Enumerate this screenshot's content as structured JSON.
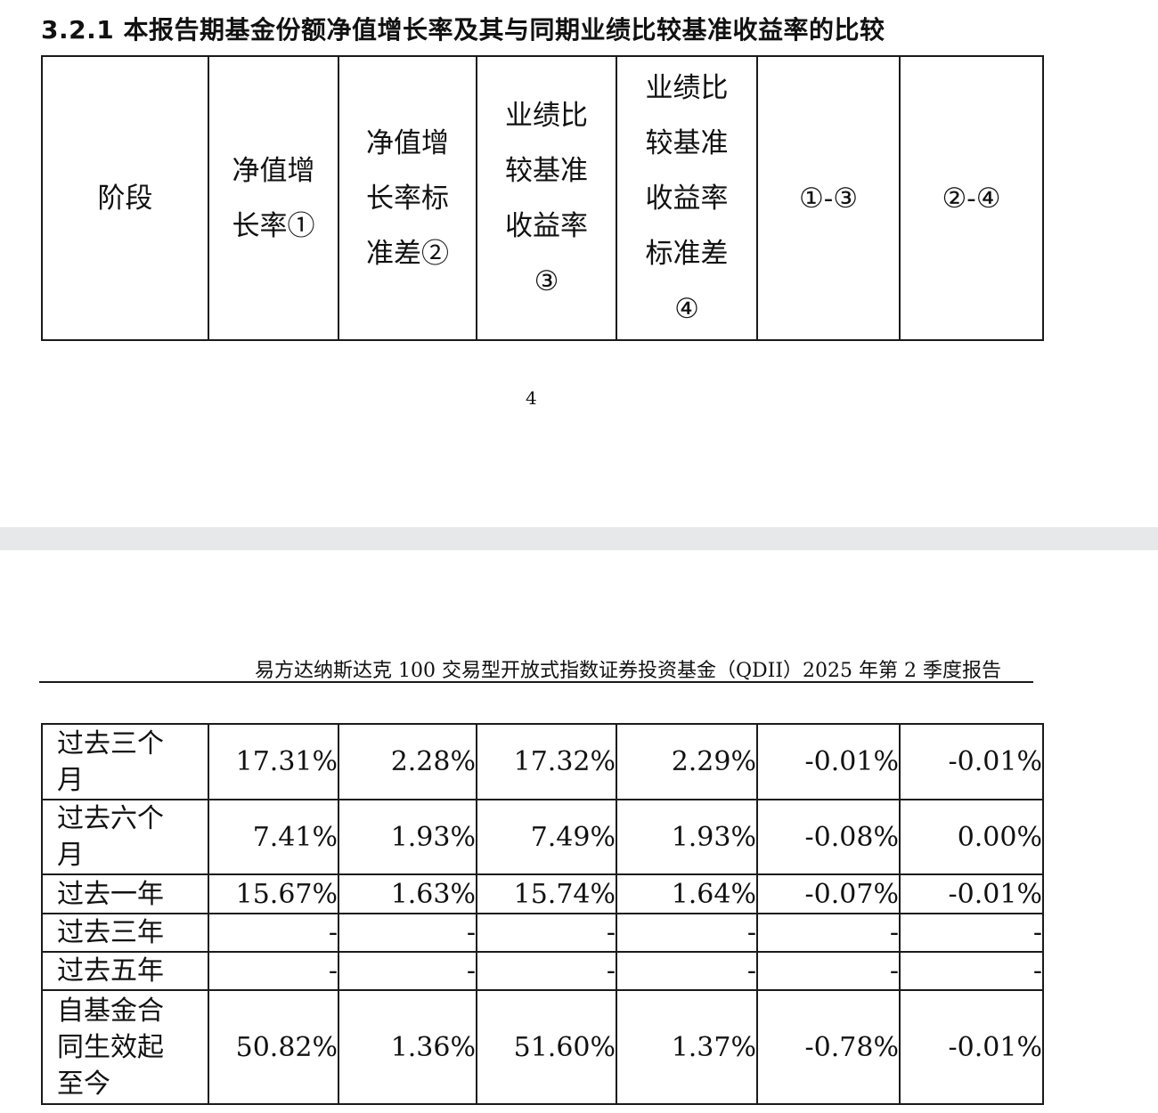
{
  "section": {
    "title": "3.2.1 本报告期基金份额净值增长率及其与同期业绩比较基准收益率的比较"
  },
  "header_table": {
    "columns": [
      {
        "lines": [
          "阶段"
        ]
      },
      {
        "lines": [
          "净值增",
          "长率①"
        ]
      },
      {
        "lines": [
          "净值增",
          "长率标",
          "准差②"
        ]
      },
      {
        "lines": [
          "业绩比",
          "较基准",
          "收益率",
          "③"
        ]
      },
      {
        "lines": [
          "业绩比",
          "较基准",
          "收益率",
          "标准差",
          "④"
        ]
      },
      {
        "lines": [
          "①-③"
        ]
      },
      {
        "lines": [
          "②-④"
        ]
      }
    ]
  },
  "page_number": "4",
  "running_header": "易方达纳斯达克 100 交易型开放式指数证券投资基金（QDII）2025 年第 2 季度报告",
  "data_table": {
    "rows": [
      {
        "stage_lines": [
          "过去三个",
          "月"
        ],
        "values": [
          "17.31%",
          "2.28%",
          "17.32%",
          "2.29%",
          "-0.01%",
          "-0.01%"
        ]
      },
      {
        "stage_lines": [
          "过去六个",
          "月"
        ],
        "values": [
          "7.41%",
          "1.93%",
          "7.49%",
          "1.93%",
          "-0.08%",
          "0.00%"
        ]
      },
      {
        "stage_lines": [
          "过去一年"
        ],
        "values": [
          "15.67%",
          "1.63%",
          "15.74%",
          "1.64%",
          "-0.07%",
          "-0.01%"
        ]
      },
      {
        "stage_lines": [
          "过去三年"
        ],
        "values": [
          "-",
          "-",
          "-",
          "-",
          "-",
          "-"
        ]
      },
      {
        "stage_lines": [
          "过去五年"
        ],
        "values": [
          "-",
          "-",
          "-",
          "-",
          "-",
          "-"
        ]
      },
      {
        "stage_lines": [
          "自基金合",
          "同生效起",
          "至今"
        ],
        "values": [
          "50.82%",
          "1.36%",
          "51.60%",
          "1.37%",
          "-0.78%",
          "-0.01%"
        ]
      }
    ]
  }
}
